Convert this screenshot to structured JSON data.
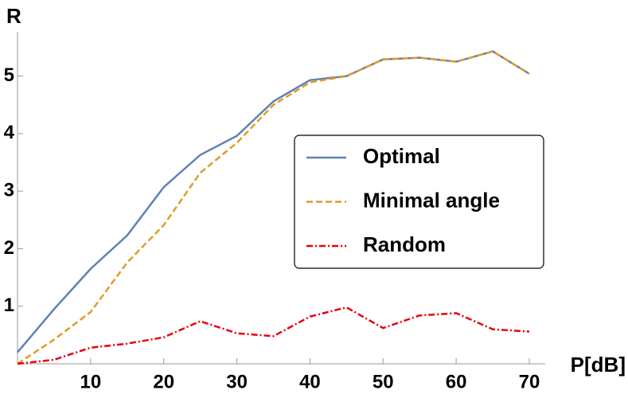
{
  "chart_data": {
    "type": "line",
    "x_label": "P[dB]",
    "y_label": "R",
    "x": [
      0,
      5,
      10,
      15,
      20,
      25,
      30,
      35,
      40,
      45,
      50,
      55,
      60,
      65,
      70
    ],
    "series": [
      {
        "name": "Optimal",
        "color": "#5e81b5",
        "dash": "solid",
        "values": [
          0.2,
          0.95,
          1.65,
          2.23,
          3.07,
          3.63,
          3.96,
          4.56,
          4.93,
          5.0,
          5.29,
          5.32,
          5.25,
          5.43,
          5.04
        ]
      },
      {
        "name": "Minimal angle",
        "color": "#e19c24",
        "dash": "dashed",
        "values": [
          0,
          0.42,
          0.9,
          1.76,
          2.41,
          3.32,
          3.84,
          4.5,
          4.89,
          5.0,
          5.29,
          5.32,
          5.25,
          5.43,
          5.04
        ]
      },
      {
        "name": "Random",
        "color": "#e8000b",
        "dash": "dashdot",
        "values": [
          0,
          0.07,
          0.28,
          0.35,
          0.46,
          0.74,
          0.53,
          0.48,
          0.82,
          0.98,
          0.62,
          0.84,
          0.88,
          0.6,
          0.56
        ]
      }
    ],
    "xlim": [
      0,
      70
    ],
    "ylim": [
      0,
      5.7
    ],
    "xticks": [
      10,
      20,
      30,
      40,
      50,
      60,
      70
    ],
    "yticks": [
      1,
      2,
      3,
      4,
      5
    ],
    "legend": "center-right"
  }
}
